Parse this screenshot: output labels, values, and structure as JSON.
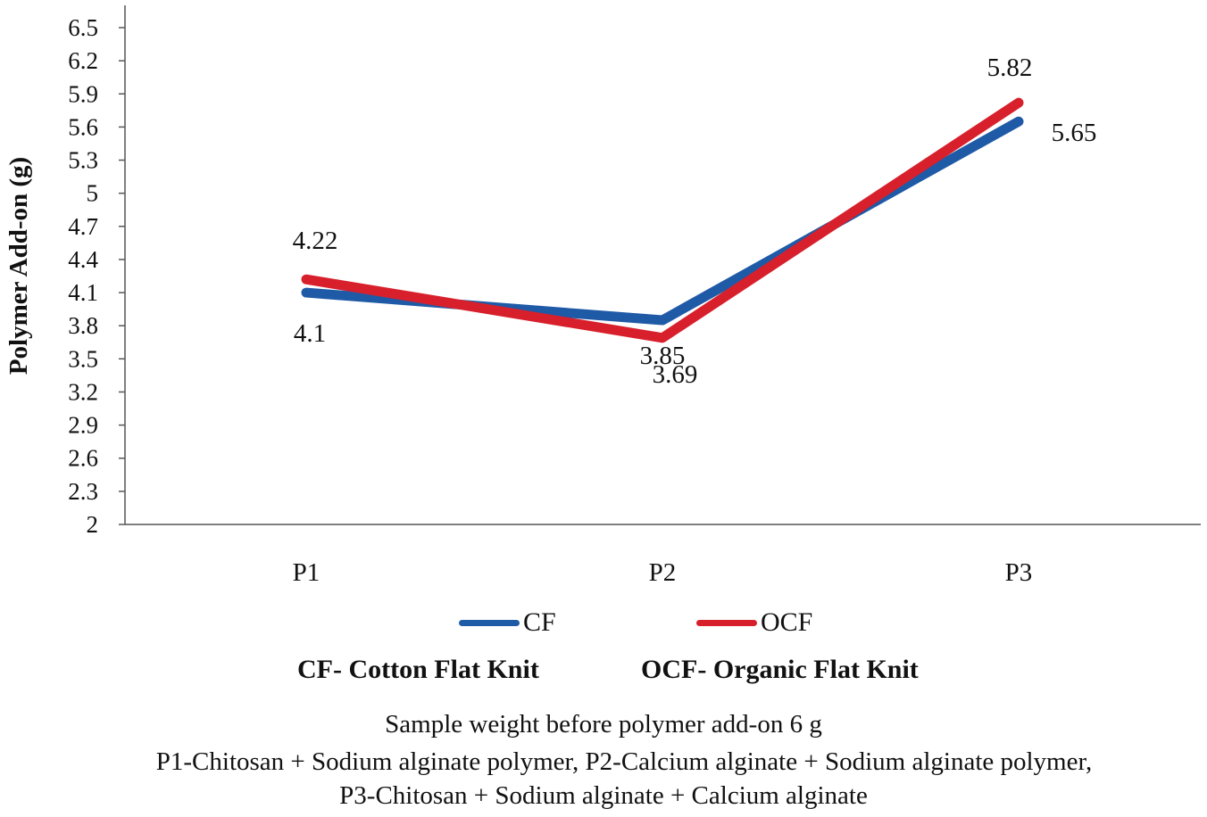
{
  "chart_data": {
    "type": "line",
    "categories": [
      "P1",
      "P2",
      "P3"
    ],
    "series": [
      {
        "name": "CF",
        "values": [
          4.1,
          3.85,
          5.65
        ],
        "color": "#1f5aa6",
        "labels": [
          "4.1",
          "3.85",
          "5.65"
        ]
      },
      {
        "name": "OCF",
        "values": [
          4.22,
          3.69,
          5.82
        ],
        "color": "#d7202c",
        "labels": [
          "4.22",
          "3.69",
          "5.82"
        ]
      }
    ],
    "ylabel": "Polymer Add-on (g)",
    "ylim": [
      2,
      6.5
    ],
    "yticks": [
      "2",
      "2.3",
      "2.6",
      "2.9",
      "3.2",
      "3.5",
      "3.8",
      "4.1",
      "4.4",
      "4.7",
      "5",
      "5.3",
      "5.6",
      "5.9",
      "6.2",
      "6.5"
    ],
    "grid": false,
    "legend_position": "bottom"
  },
  "definitions": {
    "cf": "CF- Cotton Flat Knit",
    "ocf": "OCF- Organic Flat Knit"
  },
  "notes": [
    "Sample weight before polymer add-on 6 g",
    "P1-Chitosan + Sodium alginate polymer, P2-Calcium alginate + Sodium alginate polymer,",
    "P3-Chitosan + Sodium alginate + Calcium alginate"
  ]
}
